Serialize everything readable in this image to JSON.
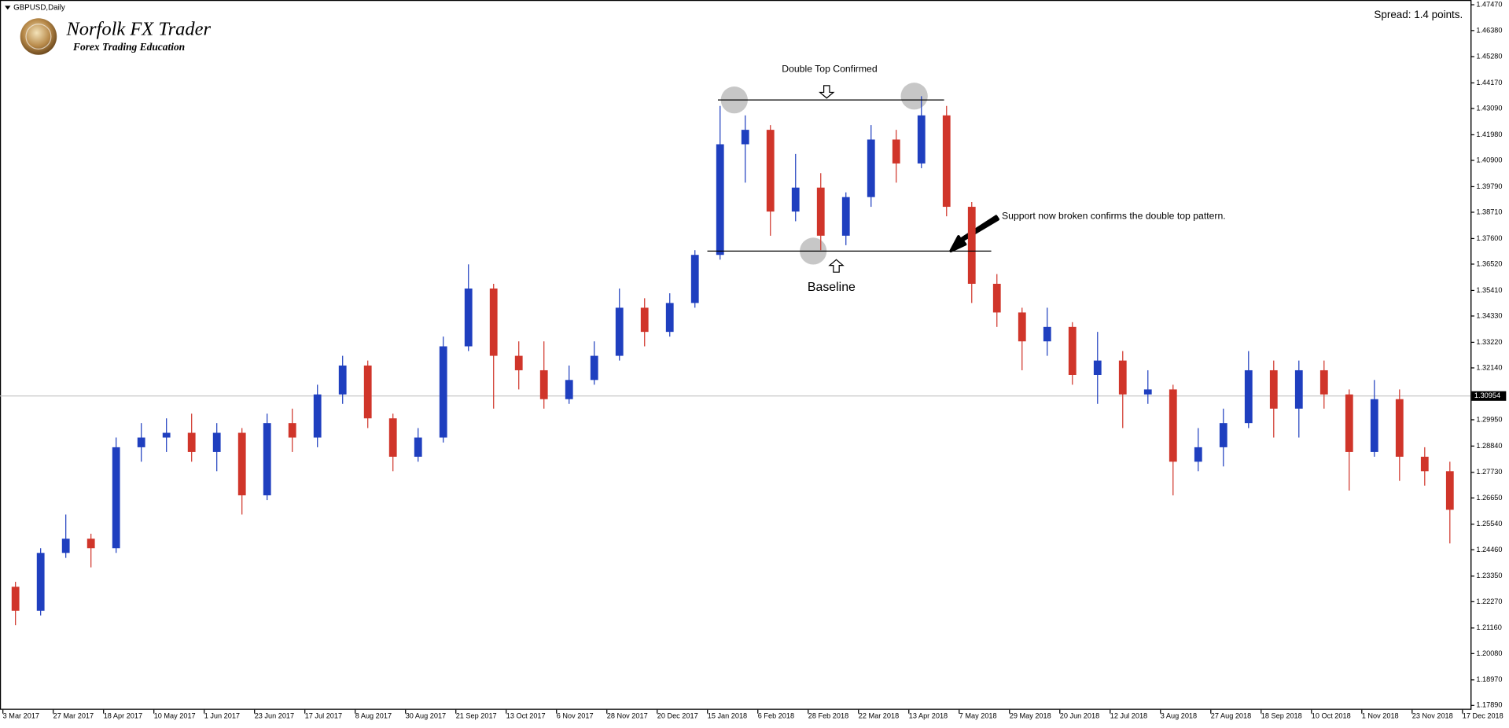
{
  "chart_data": {
    "type": "candlestick",
    "title": "GBPUSD,Daily",
    "logo_title": "Norfolk FX Trader",
    "logo_subtitle": "Forex Trading Education",
    "spread": "Spread: 1.4 points.",
    "annotations": {
      "top": "Double Top Confirmed",
      "baseline": "Baseline",
      "note": "Support now broken confirms the double top pattern."
    },
    "levels": [
      1.4345,
      1.3707
    ],
    "current_price": 1.30954,
    "up_color": "#1f3fbf",
    "down_color": "#d0352a",
    "x": [
      0.5,
      1.5,
      2.5,
      3.5,
      4.5,
      5.5,
      6.5,
      7.5,
      8.5,
      9.5,
      10.5,
      11.5,
      12.5,
      13.5,
      14.5,
      15.5,
      16.5,
      17.5,
      18.5,
      19.5,
      20.5,
      21.5,
      22.5,
      23.5,
      24.5,
      25.5,
      26.5,
      27.5,
      28.5,
      29.5,
      30.5,
      31.5,
      32.5,
      33.5,
      34.5,
      35.5,
      36.5,
      37.5,
      38.5,
      39.5,
      40.5,
      41.5,
      42.5,
      43.5,
      44.5,
      45.5,
      46.5,
      47.5,
      48.5,
      49.5,
      50.5,
      51.5,
      52.5,
      53.5,
      54.5,
      55.5,
      56.5,
      57.5
    ],
    "open": [
      1.229,
      1.2189,
      1.2433,
      1.2493,
      1.2453,
      1.2879,
      1.292,
      1.294,
      1.2859,
      1.294,
      1.2676,
      1.2981,
      1.292,
      1.3102,
      1.3224,
      1.3001,
      1.2839,
      1.292,
      1.3305,
      1.3549,
      1.3265,
      1.3204,
      1.3082,
      1.3163,
      1.3265,
      1.3468,
      1.3366,
      1.3488,
      1.3691,
      1.4158,
      1.4219,
      1.3874,
      1.3975,
      1.3772,
      1.3935,
      1.4178,
      1.4077,
      1.428,
      1.3894,
      1.3569,
      1.3448,
      1.3326,
      1.3387,
      1.3184,
      1.3245,
      1.3102,
      1.3123,
      1.2818,
      1.2879,
      1.2981,
      1.3204,
      1.3042,
      1.3204,
      1.3102,
      1.2859,
      1.3082,
      1.2839,
      1.2778
    ],
    "high": [
      1.2311,
      1.2453,
      1.2595,
      1.2514,
      1.292,
      1.2981,
      1.3001,
      1.3021,
      1.2981,
      1.296,
      1.3021,
      1.3042,
      1.3143,
      1.3265,
      1.3245,
      1.3021,
      1.296,
      1.3346,
      1.3651,
      1.3569,
      1.3326,
      1.3326,
      1.3224,
      1.3326,
      1.3549,
      1.3508,
      1.3529,
      1.3711,
      1.432,
      1.428,
      1.4239,
      1.4117,
      1.4036,
      1.3955,
      1.4239,
      1.4219,
      1.4361,
      1.432,
      1.3914,
      1.361,
      1.3468,
      1.3468,
      1.3407,
      1.3366,
      1.3285,
      1.3204,
      1.3143,
      1.296,
      1.3042,
      1.3285,
      1.3245,
      1.3245,
      1.3245,
      1.3123,
      1.3163,
      1.3123,
      1.2879,
      1.2818
    ],
    "low": [
      1.2128,
      1.2169,
      1.2412,
      1.2372,
      1.2433,
      1.2818,
      1.2859,
      1.2818,
      1.2778,
      1.2595,
      1.2656,
      1.2859,
      1.2879,
      1.3062,
      1.296,
      1.2778,
      1.2818,
      1.2899,
      1.3285,
      1.3042,
      1.3123,
      1.3042,
      1.3062,
      1.3143,
      1.3245,
      1.3305,
      1.3346,
      1.3468,
      1.3671,
      1.3996,
      1.3772,
      1.3833,
      1.3711,
      1.3732,
      1.3894,
      1.3996,
      1.4057,
      1.3854,
      1.3488,
      1.3387,
      1.3204,
      1.3265,
      1.3143,
      1.3062,
      1.296,
      1.3062,
      1.2676,
      1.2778,
      1.2798,
      1.296,
      1.292,
      1.292,
      1.3042,
      1.2696,
      1.2839,
      1.2737,
      1.2717,
      1.2473
    ],
    "close": [
      1.2189,
      1.2433,
      1.2493,
      1.2453,
      1.2879,
      1.292,
      1.294,
      1.2859,
      1.294,
      1.2676,
      1.2981,
      1.292,
      1.3102,
      1.3224,
      1.3001,
      1.2839,
      1.292,
      1.3305,
      1.3549,
      1.3265,
      1.3204,
      1.3082,
      1.3163,
      1.3265,
      1.3468,
      1.3366,
      1.3488,
      1.3691,
      1.4158,
      1.4219,
      1.3874,
      1.3975,
      1.3772,
      1.3935,
      1.4178,
      1.4077,
      1.428,
      1.3894,
      1.3569,
      1.3448,
      1.3326,
      1.3387,
      1.3184,
      1.3245,
      1.3102,
      1.3123,
      1.2818,
      1.2879,
      1.2981,
      1.3204,
      1.3042,
      1.3204,
      1.3102,
      1.2859,
      1.3082,
      1.2839,
      1.2778,
      1.2615
    ],
    "xlim": [
      -0.115,
      58.32
    ],
    "xticks": [
      {
        "value": 0,
        "label": "3 Mar 2017"
      },
      {
        "value": 2,
        "label": "27 Mar 2017"
      },
      {
        "value": 4,
        "label": "18 Apr 2017"
      },
      {
        "value": 6,
        "label": "10 May 2017"
      },
      {
        "value": 8,
        "label": "1 Jun 2017"
      },
      {
        "value": 10,
        "label": "23 Jun 2017"
      },
      {
        "value": 12,
        "label": "17 Jul 2017"
      },
      {
        "value": 14,
        "label": "8 Aug 2017"
      },
      {
        "value": 16,
        "label": "30 Aug 2017"
      },
      {
        "value": 18,
        "label": "21 Sep 2017"
      },
      {
        "value": 20,
        "label": "13 Oct 2017"
      },
      {
        "value": 22,
        "label": "6 Nov 2017"
      },
      {
        "value": 24,
        "label": "28 Nov 2017"
      },
      {
        "value": 26,
        "label": "20 Dec 2017"
      },
      {
        "value": 28,
        "label": "15 Jan 2018"
      },
      {
        "value": 30,
        "label": "6 Feb 2018"
      },
      {
        "value": 32,
        "label": "28 Feb 2018"
      },
      {
        "value": 34,
        "label": "22 Mar 2018"
      },
      {
        "value": 36,
        "label": "13 Apr 2018"
      },
      {
        "value": 38,
        "label": "7 May 2018"
      },
      {
        "value": 40,
        "label": "29 May 2018"
      },
      {
        "value": 42,
        "label": "20 Jun 2018"
      },
      {
        "value": 44,
        "label": "12 Jul 2018"
      },
      {
        "value": 46,
        "label": "3 Aug 2018"
      },
      {
        "value": 48,
        "label": "27 Aug 2018"
      },
      {
        "value": 50,
        "label": "18 Sep 2018"
      },
      {
        "value": 52,
        "label": "10 Oct 2018"
      },
      {
        "value": 54,
        "label": "1 Nov 2018"
      },
      {
        "value": 56,
        "label": "23 Nov 2018"
      },
      {
        "value": 58,
        "label": "17 Dec 2018"
      }
    ],
    "ylim": [
      1.1771,
      1.4767
    ],
    "yticks": [
      {
        "value": 1.4747,
        "label": "1.47470"
      },
      {
        "value": 1.4638,
        "label": "1.46380"
      },
      {
        "value": 1.4528,
        "label": "1.45280"
      },
      {
        "value": 1.4417,
        "label": "1.44170"
      },
      {
        "value": 1.4309,
        "label": "1.43090"
      },
      {
        "value": 1.4198,
        "label": "1.41980"
      },
      {
        "value": 1.409,
        "label": "1.40900"
      },
      {
        "value": 1.3979,
        "label": "1.39790"
      },
      {
        "value": 1.3871,
        "label": "1.38710"
      },
      {
        "value": 1.376,
        "label": "1.37600"
      },
      {
        "value": 1.3652,
        "label": "1.36520"
      },
      {
        "value": 1.3541,
        "label": "1.35410"
      },
      {
        "value": 1.3433,
        "label": "1.34330"
      },
      {
        "value": 1.3322,
        "label": "1.33220"
      },
      {
        "value": 1.3214,
        "label": "1.32140"
      },
      {
        "value": 1.2995,
        "label": "1.29950"
      },
      {
        "value": 1.2884,
        "label": "1.28840"
      },
      {
        "value": 1.2773,
        "label": "1.27730"
      },
      {
        "value": 1.2665,
        "label": "1.26650"
      },
      {
        "value": 1.2554,
        "label": "1.25540"
      },
      {
        "value": 1.2446,
        "label": "1.24460"
      },
      {
        "value": 1.2335,
        "label": "1.23350"
      },
      {
        "value": 1.2227,
        "label": "1.22270"
      },
      {
        "value": 1.2116,
        "label": "1.21160"
      },
      {
        "value": 1.2008,
        "label": "1.20080"
      },
      {
        "value": 1.1897,
        "label": "1.18970"
      },
      {
        "value": 1.1789,
        "label": "1.17890"
      }
    ]
  }
}
